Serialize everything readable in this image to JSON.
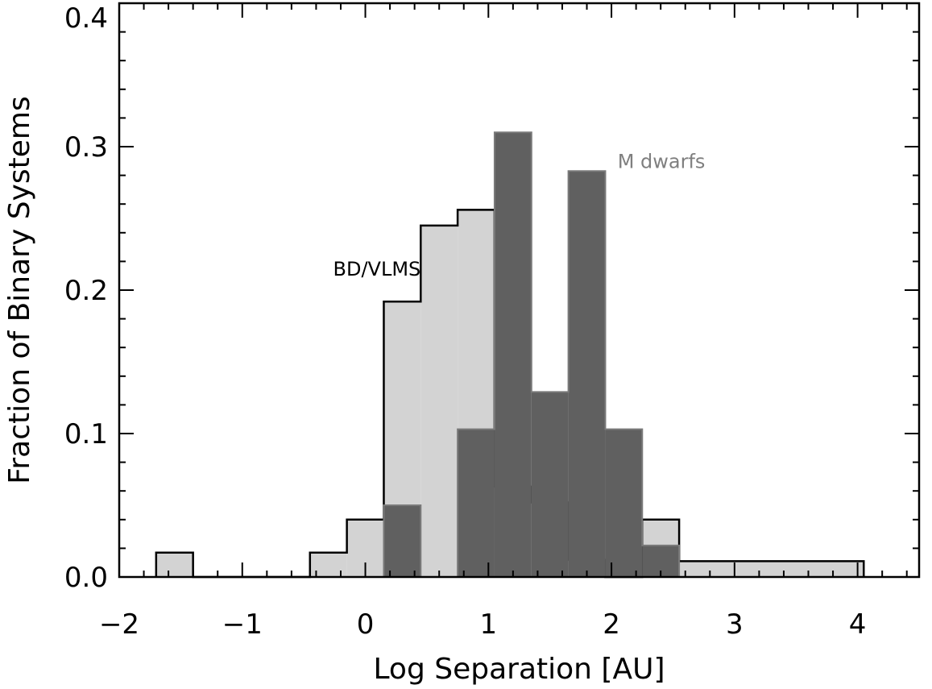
{
  "chart_data": {
    "type": "histogram",
    "xlabel": "Log Separation [AU]",
    "ylabel": "Fraction of Binary Systems",
    "xlim": [
      -2,
      4.5
    ],
    "ylim": [
      0,
      0.4
    ],
    "x_ticks": [
      -2,
      -1,
      0,
      1,
      2,
      3,
      4
    ],
    "x_tick_labels": [
      "−2",
      "−1",
      "0",
      "1",
      "2",
      "3",
      "4"
    ],
    "y_ticks": [
      0.0,
      0.1,
      0.2,
      0.3,
      0.4
    ],
    "y_tick_labels": [
      "0.0",
      "0.1",
      "0.2",
      "0.3",
      "0.4"
    ],
    "series": [
      {
        "name": "BD/VLMS",
        "fill": "#d3d3d3",
        "stroke": "#000000",
        "bin_edges": [
          -1.7,
          -1.4,
          -0.45,
          -0.15,
          0.15,
          0.45,
          0.75,
          1.05,
          1.35,
          1.65,
          1.95,
          2.25,
          2.55,
          4.05
        ],
        "values": [
          0.017,
          0.0,
          0.017,
          0.04,
          0.192,
          0.245,
          0.256,
          0.063,
          0.052,
          0.012,
          0.0,
          0.04,
          0.011
        ]
      },
      {
        "name": "M dwarfs",
        "fill": "#606060",
        "stroke": "#7a7a7a",
        "bin_edges": [
          0.15,
          0.45,
          0.75,
          1.05,
          1.35,
          1.65,
          1.95,
          2.25,
          2.55
        ],
        "values": [
          0.05,
          0.0,
          0.103,
          0.31,
          0.129,
          0.283,
          0.103,
          0.022
        ]
      }
    ],
    "annotations": [
      {
        "text": "BD/VLMS",
        "color": "#000000",
        "x": 0.45,
        "y": 0.21
      },
      {
        "text": "M dwarfs",
        "color": "#7f7f7f",
        "x": 2.05,
        "y": 0.285
      }
    ]
  }
}
